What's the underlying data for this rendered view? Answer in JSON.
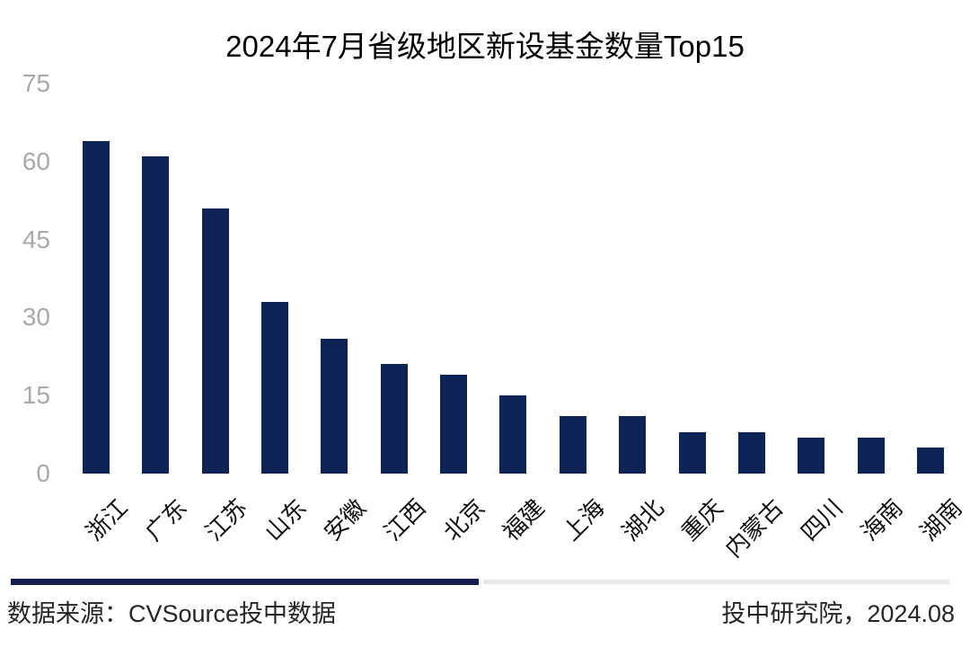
{
  "title": "2024年7月省级地区新设基金数量Top15",
  "chart_data": {
    "type": "bar",
    "title": "2024年7月省级地区新设基金数量Top15",
    "categories": [
      "浙江",
      "广东",
      "江苏",
      "山东",
      "安徽",
      "江西",
      "北京",
      "福建",
      "上海",
      "湖北",
      "重庆",
      "内蒙古",
      "四川",
      "海南",
      "湖南"
    ],
    "values": [
      64,
      61,
      51,
      33,
      26,
      21,
      19,
      15,
      11,
      11,
      8,
      8,
      7,
      7,
      5
    ],
    "xlabel": "",
    "ylabel": "",
    "ylim": [
      0,
      75
    ],
    "yticks": [
      0,
      15,
      30,
      45,
      60,
      75
    ],
    "grid": false,
    "legend_position": "none",
    "bar_color": "#0E2356",
    "tick_label_color": "#A9A9A9",
    "category_label_color": "#111111",
    "category_label_rotation_deg": -45
  },
  "footer": {
    "source": "数据来源：CVSource投中数据",
    "credit": "投中研究院，2024.08",
    "divider_dark_color": "#141B4F",
    "divider_light_color": "#E9E9E6"
  }
}
